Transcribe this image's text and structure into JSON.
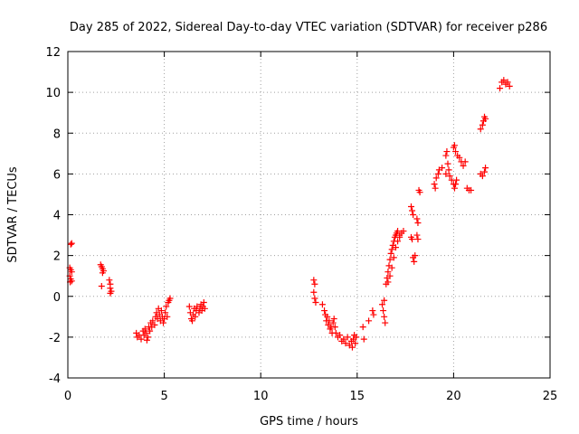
{
  "chart_data": {
    "type": "scatter",
    "title": "Day 285 of 2022, Sidereal Day-to-day VTEC variation (SDTVAR) for receiver p286",
    "xlabel": "GPS time / hours",
    "ylabel": "SDTVAR / TECUs",
    "xlim": [
      0,
      25
    ],
    "ylim": [
      -4,
      12
    ],
    "xticks": [
      0,
      5,
      10,
      15,
      20,
      25
    ],
    "yticks": [
      -4,
      -2,
      0,
      2,
      4,
      6,
      8,
      10,
      12
    ],
    "xtick_labels": [
      "0",
      "5",
      "10",
      "15",
      "20",
      "25"
    ],
    "ytick_labels": [
      "-4",
      "-2",
      "0",
      "2",
      "4",
      "6",
      "8",
      "10",
      "12"
    ],
    "grid": true,
    "marker": "+",
    "color": "#ff0000",
    "series": [
      {
        "name": "SDTVAR",
        "points": [
          [
            0.15,
            2.55
          ],
          [
            0.2,
            2.6
          ],
          [
            0.1,
            1.4
          ],
          [
            0.15,
            1.3
          ],
          [
            0.2,
            1.2
          ],
          [
            0.1,
            1.0
          ],
          [
            0.15,
            0.85
          ],
          [
            0.2,
            0.75
          ],
          [
            0.12,
            0.7
          ],
          [
            1.7,
            1.55
          ],
          [
            1.75,
            1.45
          ],
          [
            1.8,
            1.35
          ],
          [
            1.85,
            1.25
          ],
          [
            1.8,
            1.15
          ],
          [
            1.75,
            0.5
          ],
          [
            2.15,
            0.8
          ],
          [
            2.2,
            0.6
          ],
          [
            2.2,
            0.4
          ],
          [
            2.25,
            0.25
          ],
          [
            2.2,
            0.15
          ],
          [
            3.55,
            -1.8
          ],
          [
            3.6,
            -2.0
          ],
          [
            3.7,
            -1.9
          ],
          [
            3.8,
            -2.1
          ],
          [
            3.9,
            -1.7
          ],
          [
            3.95,
            -1.9
          ],
          [
            4.0,
            -1.6
          ],
          [
            4.05,
            -1.8
          ],
          [
            4.1,
            -2.15
          ],
          [
            4.15,
            -2.0
          ],
          [
            4.2,
            -1.5
          ],
          [
            4.25,
            -1.7
          ],
          [
            4.3,
            -1.3
          ],
          [
            4.35,
            -1.5
          ],
          [
            4.4,
            -1.2
          ],
          [
            4.5,
            -1.4
          ],
          [
            4.55,
            -1.0
          ],
          [
            4.6,
            -0.8
          ],
          [
            4.65,
            -1.1
          ],
          [
            4.7,
            -0.6
          ],
          [
            4.75,
            -0.9
          ],
          [
            4.8,
            -1.2
          ],
          [
            4.85,
            -0.7
          ],
          [
            4.9,
            -1.0
          ],
          [
            4.95,
            -1.3
          ],
          [
            5.0,
            -1.1
          ],
          [
            5.05,
            -0.8
          ],
          [
            5.1,
            -0.5
          ],
          [
            5.15,
            -1.0
          ],
          [
            5.2,
            -0.3
          ],
          [
            5.25,
            -0.2
          ],
          [
            5.3,
            -0.1
          ],
          [
            6.3,
            -0.5
          ],
          [
            6.35,
            -0.8
          ],
          [
            6.4,
            -1.1
          ],
          [
            6.45,
            -1.2
          ],
          [
            6.5,
            -0.9
          ],
          [
            6.55,
            -0.6
          ],
          [
            6.6,
            -1.0
          ],
          [
            6.65,
            -0.7
          ],
          [
            6.7,
            -0.5
          ],
          [
            6.8,
            -0.8
          ],
          [
            6.85,
            -0.6
          ],
          [
            6.9,
            -0.4
          ],
          [
            6.95,
            -0.7
          ],
          [
            7.0,
            -0.5
          ],
          [
            7.05,
            -0.3
          ],
          [
            7.1,
            -0.6
          ],
          [
            12.75,
            0.8
          ],
          [
            12.8,
            0.6
          ],
          [
            12.75,
            0.2
          ],
          [
            12.8,
            -0.1
          ],
          [
            12.85,
            -0.3
          ],
          [
            13.2,
            -0.4
          ],
          [
            13.3,
            -0.7
          ],
          [
            13.35,
            -0.9
          ],
          [
            13.4,
            -1.2
          ],
          [
            13.45,
            -1.0
          ],
          [
            13.5,
            -1.4
          ],
          [
            13.55,
            -1.2
          ],
          [
            13.6,
            -1.6
          ],
          [
            13.65,
            -1.5
          ],
          [
            13.7,
            -1.8
          ],
          [
            13.75,
            -1.3
          ],
          [
            13.8,
            -1.1
          ],
          [
            13.85,
            -1.5
          ],
          [
            13.9,
            -1.8
          ],
          [
            14.0,
            -2.0
          ],
          [
            14.1,
            -1.9
          ],
          [
            14.2,
            -2.2
          ],
          [
            14.3,
            -2.1
          ],
          [
            14.4,
            -2.3
          ],
          [
            14.5,
            -2.0
          ],
          [
            14.6,
            -2.4
          ],
          [
            14.7,
            -2.2
          ],
          [
            14.75,
            -2.5
          ],
          [
            14.8,
            -2.1
          ],
          [
            14.85,
            -1.9
          ],
          [
            14.9,
            -2.3
          ],
          [
            14.95,
            -2.0
          ],
          [
            15.3,
            -1.5
          ],
          [
            15.35,
            -2.1
          ],
          [
            15.6,
            -1.2
          ],
          [
            15.8,
            -0.7
          ],
          [
            15.85,
            -0.9
          ],
          [
            16.3,
            -0.4
          ],
          [
            16.35,
            -0.7
          ],
          [
            16.4,
            -1.0
          ],
          [
            16.45,
            -1.3
          ],
          [
            16.4,
            -0.2
          ],
          [
            16.5,
            0.6
          ],
          [
            16.55,
            0.9
          ],
          [
            16.6,
            1.2
          ],
          [
            16.65,
            1.5
          ],
          [
            16.7,
            1.8
          ],
          [
            16.75,
            2.1
          ],
          [
            16.8,
            2.3
          ],
          [
            16.85,
            2.5
          ],
          [
            16.9,
            2.7
          ],
          [
            16.95,
            2.9
          ],
          [
            17.0,
            3.0
          ],
          [
            17.05,
            3.1
          ],
          [
            17.1,
            3.2
          ],
          [
            17.2,
            3.0
          ],
          [
            16.6,
            0.7
          ],
          [
            16.7,
            1.0
          ],
          [
            16.8,
            1.4
          ],
          [
            16.9,
            1.9
          ],
          [
            17.0,
            2.4
          ],
          [
            17.1,
            2.7
          ],
          [
            17.2,
            2.9
          ],
          [
            17.3,
            3.1
          ],
          [
            17.4,
            3.2
          ],
          [
            17.8,
            2.9
          ],
          [
            17.85,
            2.8
          ],
          [
            17.9,
            1.9
          ],
          [
            17.95,
            1.7
          ],
          [
            18.0,
            2.0
          ],
          [
            17.8,
            4.4
          ],
          [
            17.85,
            4.2
          ],
          [
            17.9,
            4.0
          ],
          [
            18.1,
            3.8
          ],
          [
            18.15,
            3.6
          ],
          [
            18.2,
            5.2
          ],
          [
            18.25,
            5.1
          ],
          [
            18.1,
            3.0
          ],
          [
            18.15,
            2.8
          ],
          [
            19.0,
            5.5
          ],
          [
            19.05,
            5.3
          ],
          [
            19.1,
            5.8
          ],
          [
            19.2,
            6.0
          ],
          [
            19.25,
            6.2
          ],
          [
            19.4,
            6.3
          ],
          [
            19.6,
            6.9
          ],
          [
            19.65,
            7.1
          ],
          [
            19.7,
            6.5
          ],
          [
            19.75,
            6.2
          ],
          [
            19.6,
            6.0
          ],
          [
            19.8,
            5.9
          ],
          [
            19.9,
            5.7
          ],
          [
            20.0,
            5.5
          ],
          [
            20.05,
            5.3
          ],
          [
            20.1,
            5.5
          ],
          [
            20.15,
            5.7
          ],
          [
            20.0,
            7.3
          ],
          [
            20.05,
            7.4
          ],
          [
            20.1,
            7.1
          ],
          [
            20.2,
            6.9
          ],
          [
            20.3,
            6.8
          ],
          [
            20.4,
            6.6
          ],
          [
            20.5,
            6.4
          ],
          [
            20.6,
            6.6
          ],
          [
            20.7,
            5.3
          ],
          [
            20.8,
            5.2
          ],
          [
            20.9,
            5.2
          ],
          [
            21.4,
            6.0
          ],
          [
            21.5,
            5.9
          ],
          [
            21.6,
            6.1
          ],
          [
            21.65,
            6.3
          ],
          [
            21.4,
            8.2
          ],
          [
            21.5,
            8.4
          ],
          [
            21.55,
            8.6
          ],
          [
            21.6,
            8.8
          ],
          [
            21.65,
            8.7
          ],
          [
            22.4,
            10.2
          ],
          [
            22.5,
            10.5
          ],
          [
            22.6,
            10.6
          ],
          [
            22.7,
            10.4
          ],
          [
            22.8,
            10.5
          ],
          [
            22.9,
            10.3
          ]
        ]
      }
    ]
  }
}
